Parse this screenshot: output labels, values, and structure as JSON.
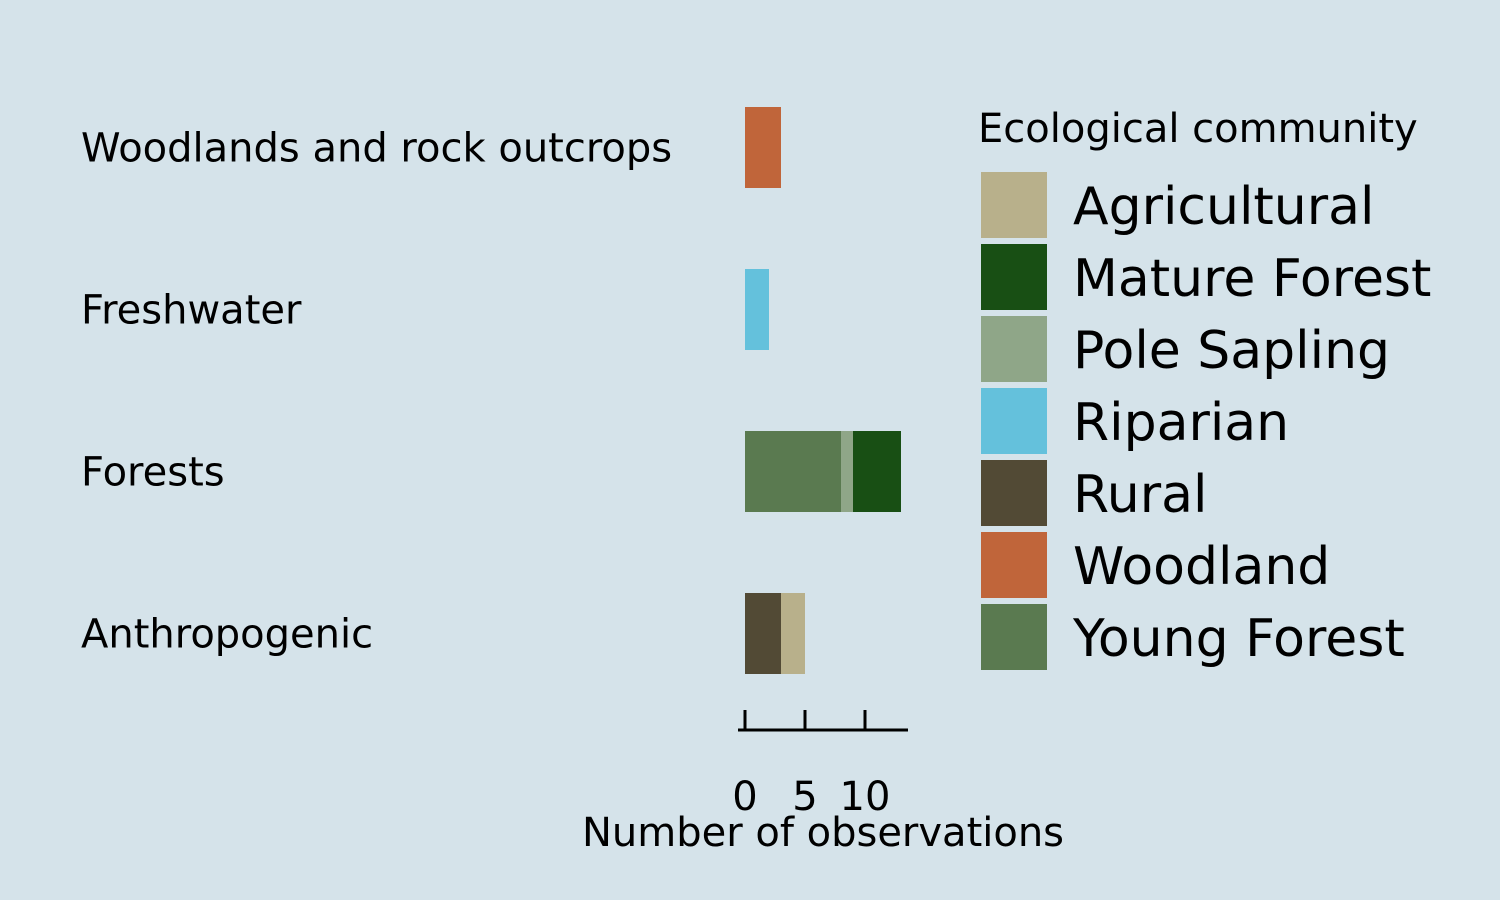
{
  "chart_data": {
    "type": "bar",
    "orientation": "horizontal",
    "stacked": true,
    "categories": [
      "Woodlands and rock outcrops",
      "Freshwater",
      "Forests",
      "Anthropogenic"
    ],
    "series": [
      {
        "name": "Young Forest",
        "color": "#5a7a50",
        "values": [
          0,
          0,
          8,
          0
        ]
      },
      {
        "name": "Pole Sapling",
        "color": "#8fa688",
        "values": [
          0,
          0,
          1,
          0
        ]
      },
      {
        "name": "Mature Forest",
        "color": "#184f14",
        "values": [
          0,
          0,
          4,
          0
        ]
      },
      {
        "name": "Rural",
        "color": "#524a35",
        "values": [
          0,
          0,
          0,
          3
        ]
      },
      {
        "name": "Agricultural",
        "color": "#b8b08b",
        "values": [
          0,
          0,
          0,
          2
        ]
      },
      {
        "name": "Woodland",
        "color": "#c0653a",
        "values": [
          3,
          0,
          0,
          0
        ]
      },
      {
        "name": "Riparian",
        "color": "#64c1dc",
        "values": [
          0,
          2,
          0,
          0
        ]
      }
    ],
    "xlabel": "Number of observations",
    "xticks": [
      0,
      5,
      10
    ],
    "xlim": [
      0,
      13
    ],
    "grid": false,
    "legend": {
      "title": "Ecological community",
      "placement": "right",
      "entries": [
        "Agricultural",
        "Mature Forest",
        "Pole Sapling",
        "Riparian",
        "Rural",
        "Woodland",
        "Young Forest"
      ]
    }
  },
  "colors": {
    "background": "#d5e3ea"
  }
}
